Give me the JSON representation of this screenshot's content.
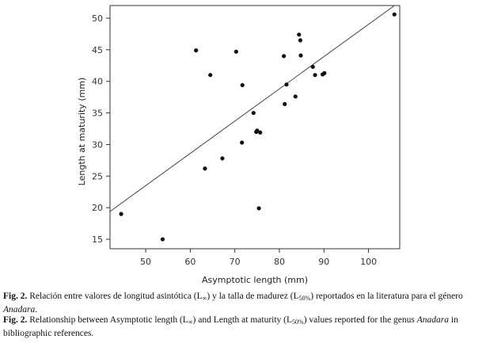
{
  "chart_data": {
    "type": "scatter",
    "xlabel": "Asymptotic length (mm)",
    "ylabel": "Length at maturity (mm)",
    "xlim": [
      42,
      107
    ],
    "ylim": [
      13.5,
      52
    ],
    "x_ticks": [
      50,
      60,
      70,
      80,
      90,
      100
    ],
    "y_ticks": [
      15,
      20,
      25,
      30,
      35,
      40,
      45,
      50
    ],
    "points": [
      {
        "x": 44.5,
        "y": 19.0
      },
      {
        "x": 53.8,
        "y": 15.0
      },
      {
        "x": 61.3,
        "y": 44.9
      },
      {
        "x": 63.3,
        "y": 26.2
      },
      {
        "x": 64.5,
        "y": 41.0
      },
      {
        "x": 67.2,
        "y": 27.8
      },
      {
        "x": 70.3,
        "y": 44.7
      },
      {
        "x": 71.6,
        "y": 30.3
      },
      {
        "x": 71.7,
        "y": 39.4
      },
      {
        "x": 74.2,
        "y": 35.0
      },
      {
        "x": 74.8,
        "y": 32.0
      },
      {
        "x": 75.0,
        "y": 32.2
      },
      {
        "x": 75.4,
        "y": 19.9
      },
      {
        "x": 75.7,
        "y": 31.9
      },
      {
        "x": 81.0,
        "y": 44.0
      },
      {
        "x": 81.2,
        "y": 36.4
      },
      {
        "x": 81.6,
        "y": 39.5
      },
      {
        "x": 83.6,
        "y": 37.6
      },
      {
        "x": 84.4,
        "y": 47.4
      },
      {
        "x": 84.7,
        "y": 46.5
      },
      {
        "x": 84.8,
        "y": 44.1
      },
      {
        "x": 87.5,
        "y": 42.3
      },
      {
        "x": 88.0,
        "y": 41.0
      },
      {
        "x": 89.7,
        "y": 41.1
      },
      {
        "x": 90.1,
        "y": 41.3
      },
      {
        "x": 105.8,
        "y": 50.6
      }
    ],
    "fit_line": {
      "x": [
        42,
        107
      ],
      "y": [
        19.4,
        52.6
      ]
    },
    "grid": false
  },
  "caption_es": {
    "label": "Fig. 2.",
    "t1": " Relación entre valores de longitud asintótica (L",
    "sub1": "∞",
    "t2": ") y la talla de madurez (L",
    "sub2": "50%",
    "t3": ") reportados en la literatura para el género ",
    "genus": "Anadara",
    "t4": "."
  },
  "caption_en": {
    "label": "Fig. 2.",
    "t1": " Relationship between Asymptotic length (L",
    "sub1": "∞",
    "t2": ") and Length at maturity (L",
    "sub2": "50%",
    "t3": ") values reported for the genus ",
    "genus": "Anadara",
    "t4": " in bibliographic references."
  }
}
